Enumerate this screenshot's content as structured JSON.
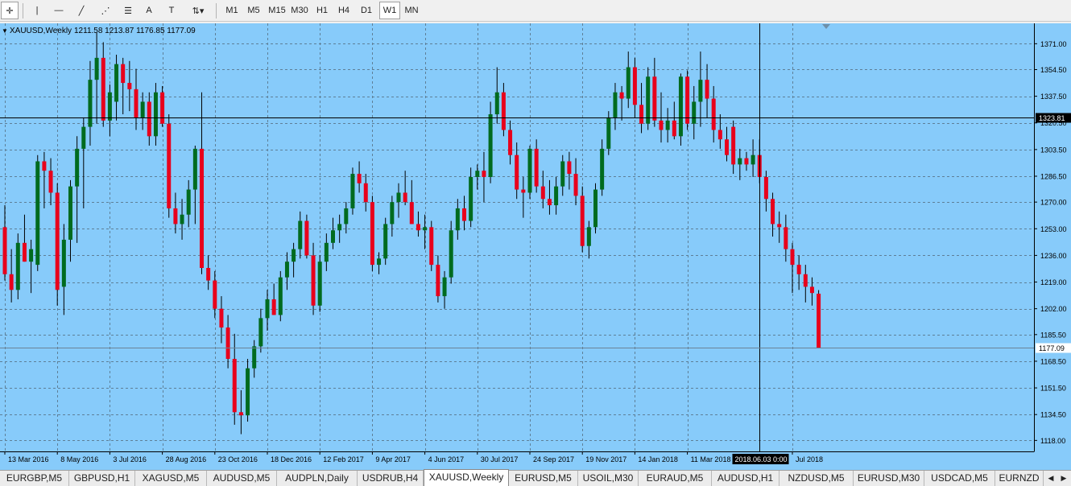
{
  "toolbar": {
    "tools": [
      {
        "name": "crosshair-icon",
        "glyph": "✛"
      },
      {
        "name": "vertical-line-icon",
        "glyph": "|"
      },
      {
        "name": "horizontal-line-icon",
        "glyph": "—"
      },
      {
        "name": "trendline-icon",
        "glyph": "╱"
      },
      {
        "name": "fibonacci-fan-icon",
        "glyph": "⋰"
      },
      {
        "name": "fibonacci-retracement-icon",
        "glyph": "☰"
      },
      {
        "name": "text-icon",
        "glyph": "A"
      },
      {
        "name": "text-label-icon",
        "glyph": "T"
      },
      {
        "name": "arrows-icon",
        "glyph": "⇅▾"
      }
    ],
    "timeframes": [
      "M1",
      "M5",
      "M15",
      "M30",
      "H1",
      "H4",
      "D1",
      "W1",
      "MN"
    ],
    "active_timeframe": "W1"
  },
  "chart_info": {
    "symbol": "XAUUSD,Weekly",
    "ohlc": "1211.58 1213.87 1176.85 1177.09"
  },
  "colors": {
    "background": "#87cbfa",
    "grid": "#5e7f97",
    "bull": "#006b1f",
    "bear": "#e8001c",
    "wick": "#000000"
  },
  "crosshair": {
    "price_label": "1323.81",
    "time_label": "2018.06.03 0:00",
    "price": 1323.81,
    "bar_index": 115
  },
  "last_price": {
    "label": "1177.09",
    "value": 1177.09
  },
  "chart_data": {
    "type": "candlestick",
    "symbol": "XAUUSD",
    "timeframe": "Weekly",
    "ylim": [
      1111,
      1384
    ],
    "y_ticks": [
      1371.0,
      1354.5,
      1337.5,
      1320.5,
      1303.5,
      1286.5,
      1270.0,
      1253.0,
      1236.0,
      1219.0,
      1202.0,
      1185.5,
      1168.5,
      1151.5,
      1134.5,
      1118.0
    ],
    "y_tick_labels": [
      "1371.00",
      "1354.50",
      "1337.50",
      "1320.50",
      "1303.50",
      "1286.50",
      "1270.00",
      "1253.00",
      "1236.00",
      "1219.00",
      "1202.00",
      "1185.50",
      "1168.50",
      "1151.50",
      "1134.50",
      "1118.00"
    ],
    "x_labels": [
      {
        "label": "13 Mar 2016",
        "bar": 0
      },
      {
        "label": "8 May 2016",
        "bar": 8
      },
      {
        "label": "3 Jul 2016",
        "bar": 16
      },
      {
        "label": "28 Aug 2016",
        "bar": 24
      },
      {
        "label": "23 Oct 2016",
        "bar": 32
      },
      {
        "label": "18 Dec 2016",
        "bar": 40
      },
      {
        "label": "12 Feb 2017",
        "bar": 48
      },
      {
        "label": "9 Apr 2017",
        "bar": 56
      },
      {
        "label": "4 Jun 2017",
        "bar": 64
      },
      {
        "label": "30 Jul 2017",
        "bar": 72
      },
      {
        "label": "24 Sep 2017",
        "bar": 80
      },
      {
        "label": "19 Nov 2017",
        "bar": 88
      },
      {
        "label": "14 Jan 2018",
        "bar": 96
      },
      {
        "label": "11 Mar 2018",
        "bar": 104
      },
      {
        "label": "Jul 2018",
        "bar": 120
      }
    ],
    "candles": [
      {
        "o": 1254,
        "h": 1268,
        "l": 1220,
        "c": 1224
      },
      {
        "o": 1224,
        "h": 1240,
        "l": 1206,
        "c": 1214
      },
      {
        "o": 1214,
        "h": 1250,
        "l": 1208,
        "c": 1244
      },
      {
        "o": 1244,
        "h": 1262,
        "l": 1232,
        "c": 1232
      },
      {
        "o": 1232,
        "h": 1246,
        "l": 1212,
        "c": 1240
      },
      {
        "o": 1230,
        "h": 1300,
        "l": 1226,
        "c": 1296
      },
      {
        "o": 1296,
        "h": 1302,
        "l": 1266,
        "c": 1290
      },
      {
        "o": 1290,
        "h": 1298,
        "l": 1268,
        "c": 1276
      },
      {
        "o": 1276,
        "h": 1282,
        "l": 1204,
        "c": 1214
      },
      {
        "o": 1216,
        "h": 1256,
        "l": 1198,
        "c": 1246
      },
      {
        "o": 1246,
        "h": 1284,
        "l": 1232,
        "c": 1280
      },
      {
        "o": 1280,
        "h": 1312,
        "l": 1244,
        "c": 1304
      },
      {
        "o": 1304,
        "h": 1324,
        "l": 1266,
        "c": 1318
      },
      {
        "o": 1318,
        "h": 1360,
        "l": 1306,
        "c": 1348
      },
      {
        "o": 1348,
        "h": 1378,
        "l": 1320,
        "c": 1362
      },
      {
        "o": 1362,
        "h": 1372,
        "l": 1318,
        "c": 1322
      },
      {
        "o": 1322,
        "h": 1345,
        "l": 1312,
        "c": 1340
      },
      {
        "o": 1334,
        "h": 1364,
        "l": 1322,
        "c": 1358
      },
      {
        "o": 1358,
        "h": 1362,
        "l": 1326,
        "c": 1346
      },
      {
        "o": 1346,
        "h": 1360,
        "l": 1328,
        "c": 1342
      },
      {
        "o": 1342,
        "h": 1355,
        "l": 1316,
        "c": 1324
      },
      {
        "o": 1324,
        "h": 1340,
        "l": 1316,
        "c": 1334
      },
      {
        "o": 1334,
        "h": 1340,
        "l": 1306,
        "c": 1312
      },
      {
        "o": 1312,
        "h": 1346,
        "l": 1306,
        "c": 1340
      },
      {
        "o": 1340,
        "h": 1344,
        "l": 1318,
        "c": 1320
      },
      {
        "o": 1320,
        "h": 1326,
        "l": 1260,
        "c": 1266
      },
      {
        "o": 1266,
        "h": 1276,
        "l": 1250,
        "c": 1256
      },
      {
        "o": 1256,
        "h": 1272,
        "l": 1246,
        "c": 1262
      },
      {
        "o": 1262,
        "h": 1284,
        "l": 1254,
        "c": 1278
      },
      {
        "o": 1278,
        "h": 1306,
        "l": 1256,
        "c": 1304
      },
      {
        "o": 1304,
        "h": 1340,
        "l": 1224,
        "c": 1228
      },
      {
        "o": 1228,
        "h": 1236,
        "l": 1214,
        "c": 1220
      },
      {
        "o": 1220,
        "h": 1226,
        "l": 1196,
        "c": 1202
      },
      {
        "o": 1202,
        "h": 1210,
        "l": 1180,
        "c": 1190
      },
      {
        "o": 1190,
        "h": 1198,
        "l": 1164,
        "c": 1170
      },
      {
        "o": 1170,
        "h": 1186,
        "l": 1128,
        "c": 1136
      },
      {
        "o": 1136,
        "h": 1150,
        "l": 1122,
        "c": 1134
      },
      {
        "o": 1134,
        "h": 1170,
        "l": 1130,
        "c": 1164
      },
      {
        "o": 1164,
        "h": 1182,
        "l": 1158,
        "c": 1178
      },
      {
        "o": 1178,
        "h": 1202,
        "l": 1174,
        "c": 1196
      },
      {
        "o": 1196,
        "h": 1214,
        "l": 1188,
        "c": 1208
      },
      {
        "o": 1208,
        "h": 1218,
        "l": 1198,
        "c": 1198
      },
      {
        "o": 1198,
        "h": 1226,
        "l": 1194,
        "c": 1222
      },
      {
        "o": 1222,
        "h": 1238,
        "l": 1214,
        "c": 1232
      },
      {
        "o": 1232,
        "h": 1244,
        "l": 1222,
        "c": 1240
      },
      {
        "o": 1240,
        "h": 1264,
        "l": 1234,
        "c": 1258
      },
      {
        "o": 1258,
        "h": 1262,
        "l": 1234,
        "c": 1236
      },
      {
        "o": 1236,
        "h": 1244,
        "l": 1198,
        "c": 1204
      },
      {
        "o": 1204,
        "h": 1236,
        "l": 1200,
        "c": 1232
      },
      {
        "o": 1232,
        "h": 1250,
        "l": 1226,
        "c": 1244
      },
      {
        "o": 1244,
        "h": 1260,
        "l": 1240,
        "c": 1252
      },
      {
        "o": 1252,
        "h": 1262,
        "l": 1244,
        "c": 1256
      },
      {
        "o": 1256,
        "h": 1270,
        "l": 1250,
        "c": 1266
      },
      {
        "o": 1266,
        "h": 1292,
        "l": 1262,
        "c": 1288
      },
      {
        "o": 1288,
        "h": 1296,
        "l": 1276,
        "c": 1282
      },
      {
        "o": 1282,
        "h": 1288,
        "l": 1264,
        "c": 1270
      },
      {
        "o": 1270,
        "h": 1274,
        "l": 1226,
        "c": 1230
      },
      {
        "o": 1230,
        "h": 1238,
        "l": 1224,
        "c": 1234
      },
      {
        "o": 1234,
        "h": 1260,
        "l": 1230,
        "c": 1256
      },
      {
        "o": 1256,
        "h": 1274,
        "l": 1248,
        "c": 1270
      },
      {
        "o": 1270,
        "h": 1282,
        "l": 1260,
        "c": 1276
      },
      {
        "o": 1276,
        "h": 1290,
        "l": 1268,
        "c": 1270
      },
      {
        "o": 1270,
        "h": 1284,
        "l": 1256,
        "c": 1256
      },
      {
        "o": 1256,
        "h": 1264,
        "l": 1248,
        "c": 1252
      },
      {
        "o": 1252,
        "h": 1262,
        "l": 1240,
        "c": 1254
      },
      {
        "o": 1254,
        "h": 1258,
        "l": 1226,
        "c": 1230
      },
      {
        "o": 1230,
        "h": 1236,
        "l": 1206,
        "c": 1210
      },
      {
        "o": 1210,
        "h": 1226,
        "l": 1202,
        "c": 1222
      },
      {
        "o": 1222,
        "h": 1258,
        "l": 1218,
        "c": 1252
      },
      {
        "o": 1252,
        "h": 1272,
        "l": 1246,
        "c": 1266
      },
      {
        "o": 1266,
        "h": 1274,
        "l": 1252,
        "c": 1258
      },
      {
        "o": 1258,
        "h": 1292,
        "l": 1254,
        "c": 1286
      },
      {
        "o": 1286,
        "h": 1294,
        "l": 1278,
        "c": 1290
      },
      {
        "o": 1290,
        "h": 1302,
        "l": 1270,
        "c": 1286
      },
      {
        "o": 1286,
        "h": 1334,
        "l": 1282,
        "c": 1326
      },
      {
        "o": 1326,
        "h": 1356,
        "l": 1320,
        "c": 1340
      },
      {
        "o": 1340,
        "h": 1346,
        "l": 1312,
        "c": 1316
      },
      {
        "o": 1316,
        "h": 1322,
        "l": 1294,
        "c": 1300
      },
      {
        "o": 1300,
        "h": 1308,
        "l": 1272,
        "c": 1278
      },
      {
        "o": 1278,
        "h": 1286,
        "l": 1260,
        "c": 1276
      },
      {
        "o": 1276,
        "h": 1306,
        "l": 1272,
        "c": 1304
      },
      {
        "o": 1304,
        "h": 1310,
        "l": 1276,
        "c": 1280
      },
      {
        "o": 1280,
        "h": 1290,
        "l": 1266,
        "c": 1272
      },
      {
        "o": 1272,
        "h": 1284,
        "l": 1262,
        "c": 1268
      },
      {
        "o": 1268,
        "h": 1286,
        "l": 1262,
        "c": 1280
      },
      {
        "o": 1280,
        "h": 1300,
        "l": 1274,
        "c": 1296
      },
      {
        "o": 1296,
        "h": 1302,
        "l": 1278,
        "c": 1288
      },
      {
        "o": 1288,
        "h": 1298,
        "l": 1268,
        "c": 1274
      },
      {
        "o": 1274,
        "h": 1280,
        "l": 1238,
        "c": 1242
      },
      {
        "o": 1242,
        "h": 1258,
        "l": 1234,
        "c": 1254
      },
      {
        "o": 1254,
        "h": 1282,
        "l": 1250,
        "c": 1278
      },
      {
        "o": 1278,
        "h": 1310,
        "l": 1274,
        "c": 1304
      },
      {
        "o": 1304,
        "h": 1328,
        "l": 1300,
        "c": 1324
      },
      {
        "o": 1324,
        "h": 1346,
        "l": 1316,
        "c": 1340
      },
      {
        "o": 1340,
        "h": 1344,
        "l": 1322,
        "c": 1336
      },
      {
        "o": 1336,
        "h": 1366,
        "l": 1330,
        "c": 1356
      },
      {
        "o": 1356,
        "h": 1362,
        "l": 1324,
        "c": 1332
      },
      {
        "o": 1332,
        "h": 1346,
        "l": 1314,
        "c": 1320
      },
      {
        "o": 1320,
        "h": 1356,
        "l": 1316,
        "c": 1350
      },
      {
        "o": 1350,
        "h": 1362,
        "l": 1318,
        "c": 1322
      },
      {
        "o": 1322,
        "h": 1340,
        "l": 1308,
        "c": 1316
      },
      {
        "o": 1316,
        "h": 1330,
        "l": 1308,
        "c": 1322
      },
      {
        "o": 1322,
        "h": 1334,
        "l": 1310,
        "c": 1312
      },
      {
        "o": 1312,
        "h": 1352,
        "l": 1306,
        "c": 1350
      },
      {
        "o": 1350,
        "h": 1354,
        "l": 1316,
        "c": 1320
      },
      {
        "o": 1320,
        "h": 1344,
        "l": 1310,
        "c": 1334
      },
      {
        "o": 1334,
        "h": 1366,
        "l": 1318,
        "c": 1348
      },
      {
        "o": 1348,
        "h": 1358,
        "l": 1324,
        "c": 1336
      },
      {
        "o": 1336,
        "h": 1344,
        "l": 1308,
        "c": 1316
      },
      {
        "o": 1316,
        "h": 1326,
        "l": 1304,
        "c": 1310
      },
      {
        "o": 1310,
        "h": 1318,
        "l": 1296,
        "c": 1300
      },
      {
        "o": 1318,
        "h": 1322,
        "l": 1288,
        "c": 1294
      },
      {
        "o": 1294,
        "h": 1304,
        "l": 1284,
        "c": 1298
      },
      {
        "o": 1298,
        "h": 1302,
        "l": 1290,
        "c": 1294
      },
      {
        "o": 1294,
        "h": 1310,
        "l": 1286,
        "c": 1300
      },
      {
        "o": 1300,
        "h": 1310,
        "l": 1282,
        "c": 1286
      },
      {
        "o": 1286,
        "h": 1290,
        "l": 1264,
        "c": 1272
      },
      {
        "o": 1272,
        "h": 1276,
        "l": 1248,
        "c": 1256
      },
      {
        "o": 1256,
        "h": 1264,
        "l": 1244,
        "c": 1254
      },
      {
        "o": 1254,
        "h": 1262,
        "l": 1232,
        "c": 1240
      },
      {
        "o": 1240,
        "h": 1244,
        "l": 1212,
        "c": 1230
      },
      {
        "o": 1230,
        "h": 1236,
        "l": 1214,
        "c": 1224
      },
      {
        "o": 1224,
        "h": 1230,
        "l": 1206,
        "c": 1216
      },
      {
        "o": 1216,
        "h": 1222,
        "l": 1204,
        "c": 1212
      },
      {
        "o": 1211.58,
        "h": 1213.87,
        "l": 1176.85,
        "c": 1177.09
      }
    ]
  },
  "tabs": {
    "items": [
      "EURGBP,M5",
      "GBPUSD,H1",
      "XAGUSD,M5",
      "AUDUSD,M5",
      "AUDPLN,Daily",
      "USDRUB,H4",
      "XAUUSD,Weekly",
      "EURUSD,M5",
      "USOIL,M30",
      "EURAUD,M5",
      "AUDUSD,H1",
      "NZDUSD,M5",
      "EURUSD,M30",
      "USDCAD,M5",
      "EURNZD"
    ],
    "active": "XAUUSD,Weekly"
  }
}
